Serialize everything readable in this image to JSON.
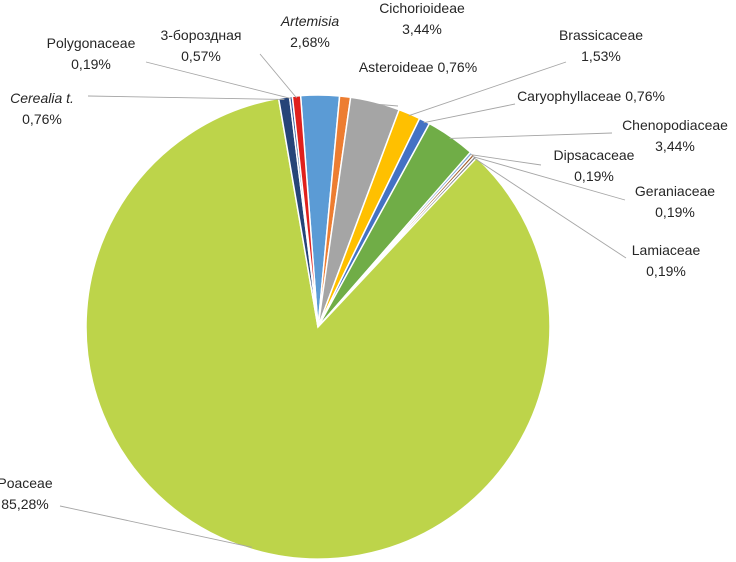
{
  "chart_data": {
    "type": "pie",
    "legend": "none",
    "slices": [
      {
        "name": "Artemisia",
        "label_name": "Artemisia",
        "label_value": "2,68%",
        "value": 2.68,
        "italic": true,
        "color": "#5B9BD5"
      },
      {
        "name": "Asteroideae",
        "label_name": "Asteroideae",
        "label_value": "0,76%",
        "value": 0.76,
        "color": "#ED7D31"
      },
      {
        "name": "Cichorioideae",
        "label_name": "Cichorioideae",
        "label_value": "3,44%",
        "value": 3.44,
        "color": "#A5A5A5"
      },
      {
        "name": "Brassicaceae",
        "label_name": "Brassicaceae",
        "label_value": "1,53%",
        "value": 1.53,
        "color": "#FFC000"
      },
      {
        "name": "Caryophyllaceae",
        "label_name": "Caryophyllaceae",
        "label_value": "0,76%",
        "value": 0.76,
        "color": "#4472C4"
      },
      {
        "name": "Chenopodiaceae",
        "label_name": "Chenopodiaceae",
        "label_value": "3,44%",
        "value": 3.44,
        "color": "#70AD47"
      },
      {
        "name": "Dipsacaceae",
        "label_name": "Dipsacaceae",
        "label_value": "0,19%",
        "value": 0.19,
        "color": "#7FA7D8"
      },
      {
        "name": "Geraniaceae",
        "label_name": "Geraniaceae",
        "label_value": "0,19%",
        "value": 0.19,
        "color": "#9E5A28"
      },
      {
        "name": "Lamiaceae",
        "label_name": "Lamiaceae",
        "label_value": "0,19%",
        "value": 0.19,
        "color": "#7F7F7F"
      },
      {
        "name": "Poaceae",
        "label_name": "Poaceae",
        "label_value": "85,28%",
        "value": 85.28,
        "color": "#BDD44A"
      },
      {
        "name": "Cerealia t.",
        "label_name": "Cerealia t.",
        "label_value": "0,76%",
        "value": 0.76,
        "italic": true,
        "color": "#264478"
      },
      {
        "name": "Polygonaceae",
        "label_name": "Polygonaceae",
        "label_value": "0,19%",
        "value": 0.19,
        "color": "#2F5597"
      },
      {
        "name": "3-бороздная",
        "label_name": "3-бороздная",
        "label_value": "0,57%",
        "value": 0.57,
        "color": "#E0201C"
      }
    ]
  }
}
